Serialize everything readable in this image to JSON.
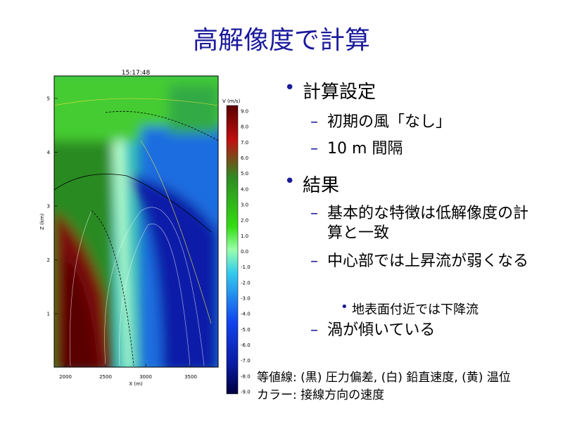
{
  "title": "高解像度で計算",
  "bullets": [
    {
      "text": "計算設定",
      "items": [
        {
          "text": "初期の風「なし」"
        },
        {
          "text": "10 m 間隔"
        }
      ]
    },
    {
      "text": "結果",
      "items": [
        {
          "text": "基本的な特徴は低解像度の計算と一致"
        },
        {
          "text": "中心部では上昇流が弱くなる",
          "items": [
            "地表面付近では下降流"
          ]
        },
        {
          "text": "渦が傾いている"
        }
      ]
    }
  ],
  "caption": [
    "等値線: (黒) 圧力偏差, (白) 鉛直速度, (黄) 温位",
    "カラー: 接線方向の速度"
  ],
  "figure": {
    "time": "15:17:48",
    "x_label": "X (m)",
    "y_label": "Z (km)",
    "x_ticks": [
      "2000",
      "2500",
      "3000",
      "3500"
    ],
    "y_ticks": [
      "1",
      "2",
      "3",
      "4",
      "5"
    ],
    "colorbar_title": "V (m/s)",
    "colorbar_ticks": [
      "9.0",
      "8.0",
      "7.0",
      "6.0",
      "5.0",
      "4.0",
      "3.0",
      "2.0",
      "1.0",
      "0.0",
      "-1.0",
      "-2.0",
      "-3.0",
      "-4.0",
      "-5.0",
      "-6.0",
      "-7.0",
      "-8.0",
      "-9.0"
    ]
  }
}
